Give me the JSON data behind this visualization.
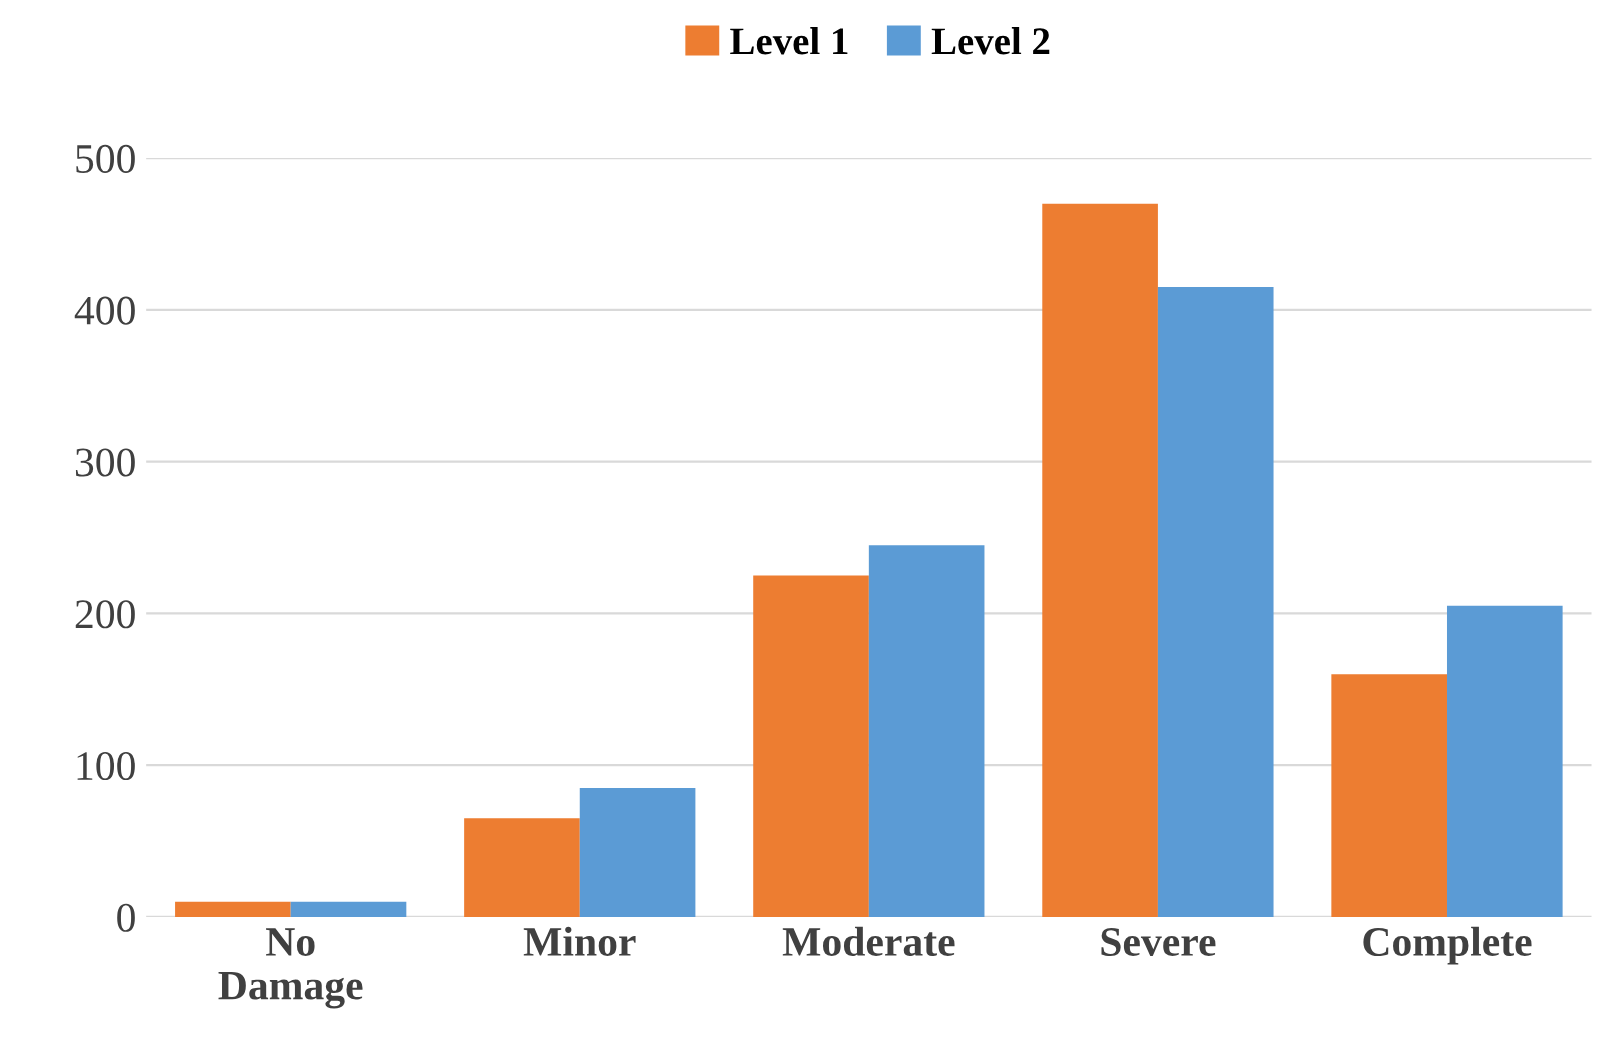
{
  "chart_data": {
    "type": "bar",
    "categories": [
      "No\nDamage",
      "Minor",
      "Moderate",
      "Severe",
      "Complete"
    ],
    "series": [
      {
        "name": "Level 1",
        "color": "#ed7d31",
        "values": [
          10,
          65,
          225,
          470,
          160
        ]
      },
      {
        "name": "Level 2",
        "color": "#5b9bd5",
        "values": [
          10,
          85,
          245,
          415,
          205
        ]
      }
    ],
    "ylim": [
      0,
      500
    ],
    "yticks": [
      0,
      100,
      200,
      300,
      400,
      500
    ],
    "grid": "y",
    "legend": "top"
  }
}
